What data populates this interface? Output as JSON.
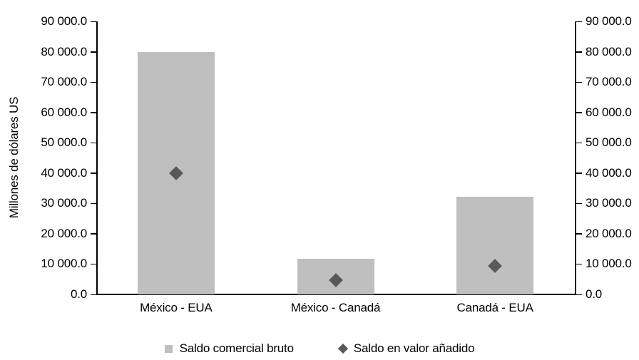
{
  "chart_data": {
    "type": "bar",
    "title": "",
    "categories": [
      "México - EUA",
      "México - Canadá",
      "Canadá - EUA"
    ],
    "series": [
      {
        "name": "Saldo comercial bruto",
        "type": "bar",
        "marker": "square",
        "color": "#bfbfbf",
        "values": [
          79800,
          11800,
          32200
        ]
      },
      {
        "name": "Saldo en valor añadido",
        "type": "scatter",
        "marker": "diamond",
        "color": "#595959",
        "values": [
          39900,
          4700,
          9400
        ]
      }
    ],
    "xlabel": "",
    "ylabel": "Millones de dólares US",
    "ylim": [
      0,
      90000
    ],
    "ytick_values": [
      0,
      10000,
      20000,
      30000,
      40000,
      50000,
      60000,
      70000,
      80000,
      90000
    ],
    "ytick_labels": [
      "0.0",
      "10 000.0",
      "20 000.0",
      "30 000.0",
      "40 000.0",
      "50 000.0",
      "60 000.0",
      "70 000.0",
      "80 000.0",
      "90 000.0"
    ],
    "secondary_y_axis": true,
    "grid": false,
    "legend_position": "bottom",
    "colors": {
      "axis": "#000000",
      "text": "#000000",
      "background": "#ffffff"
    }
  }
}
